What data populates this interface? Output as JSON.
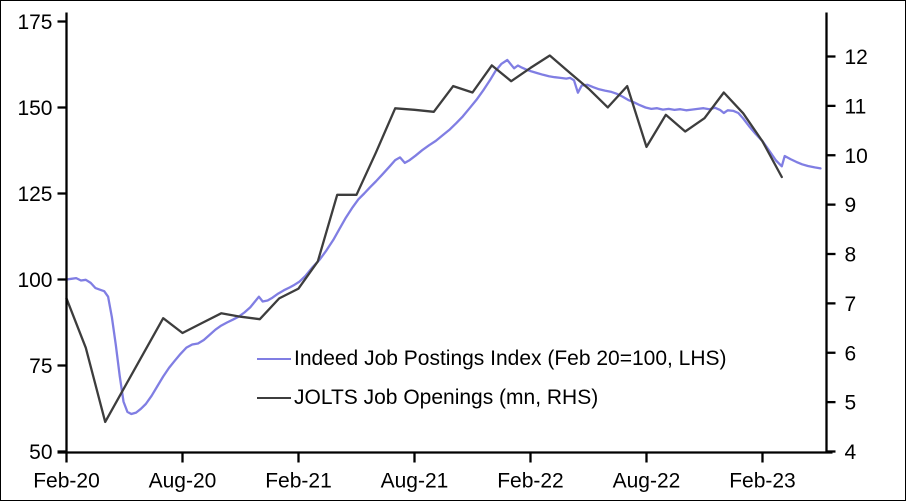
{
  "chart_data": {
    "type": "line",
    "title": "",
    "background": "#ffffff",
    "axis_color": "#000000",
    "grid": false,
    "x_axis": {
      "unit": "months-since-Feb-2020",
      "ticks": [
        {
          "m": 0,
          "label": "Feb-20"
        },
        {
          "m": 6,
          "label": "Aug-20"
        },
        {
          "m": 12,
          "label": "Feb-21"
        },
        {
          "m": 18,
          "label": "Aug-21"
        },
        {
          "m": 24,
          "label": "Feb-22"
        },
        {
          "m": 30,
          "label": "Aug-22"
        },
        {
          "m": 36,
          "label": "Feb-23"
        }
      ]
    },
    "y_left": {
      "min": 50,
      "max": 175,
      "ticks": [
        50,
        75,
        100,
        125,
        150,
        175
      ]
    },
    "y_right": {
      "min": 4,
      "max": 12,
      "ticks": [
        4,
        5,
        6,
        7,
        8,
        9,
        10,
        11,
        12
      ]
    },
    "legend": [
      {
        "label": "Indeed Job Postings Index (Feb 20=100, LHS)",
        "color": "#807ee3"
      },
      {
        "label": "JOLTS Job Openings (mn, RHS)",
        "color": "#3d3d3d"
      }
    ],
    "series": [
      {
        "name": "Indeed Job Postings Index (Feb 20=100, LHS)",
        "axis": "left",
        "color": "#807ee3",
        "points": [
          [
            0,
            100
          ],
          [
            0.25,
            100.2
          ],
          [
            0.5,
            100.4
          ],
          [
            0.75,
            99.7
          ],
          [
            1.0,
            99.9
          ],
          [
            1.25,
            99.0
          ],
          [
            1.5,
            97.5
          ],
          [
            1.75,
            97.0
          ],
          [
            1.95,
            96.6
          ],
          [
            2.15,
            95.0
          ],
          [
            2.35,
            89.0
          ],
          [
            2.55,
            81.0
          ],
          [
            2.75,
            72.0
          ],
          [
            2.95,
            64.5
          ],
          [
            3.15,
            61.5
          ],
          [
            3.35,
            60.9
          ],
          [
            3.6,
            61.3
          ],
          [
            3.85,
            62.4
          ],
          [
            4.1,
            63.8
          ],
          [
            4.4,
            66.2
          ],
          [
            4.7,
            69.0
          ],
          [
            5.0,
            71.8
          ],
          [
            5.3,
            74.3
          ],
          [
            5.6,
            76.4
          ],
          [
            5.9,
            78.4
          ],
          [
            6.2,
            80.2
          ],
          [
            6.5,
            81.1
          ],
          [
            6.8,
            81.4
          ],
          [
            7.1,
            82.4
          ],
          [
            7.4,
            83.9
          ],
          [
            7.7,
            85.4
          ],
          [
            8.0,
            86.6
          ],
          [
            8.3,
            87.5
          ],
          [
            8.6,
            88.3
          ],
          [
            8.9,
            89.2
          ],
          [
            9.2,
            90.4
          ],
          [
            9.5,
            91.9
          ],
          [
            9.75,
            93.6
          ],
          [
            9.95,
            95.0
          ],
          [
            10.15,
            93.6
          ],
          [
            10.4,
            93.9
          ],
          [
            10.65,
            94.7
          ],
          [
            10.95,
            95.9
          ],
          [
            11.25,
            96.9
          ],
          [
            11.55,
            97.7
          ],
          [
            11.8,
            98.5
          ],
          [
            12.05,
            99.4
          ],
          [
            12.35,
            101.0
          ],
          [
            12.7,
            103.4
          ],
          [
            13.1,
            105.8
          ],
          [
            13.45,
            108.5
          ],
          [
            13.8,
            111.5
          ],
          [
            14.1,
            114.5
          ],
          [
            14.45,
            118.0
          ],
          [
            14.8,
            121.0
          ],
          [
            15.1,
            123.3
          ],
          [
            15.4,
            125.0
          ],
          [
            15.7,
            126.8
          ],
          [
            16.0,
            128.5
          ],
          [
            16.35,
            130.6
          ],
          [
            16.7,
            132.8
          ],
          [
            17.0,
            134.7
          ],
          [
            17.25,
            135.5
          ],
          [
            17.5,
            133.9
          ],
          [
            17.75,
            134.7
          ],
          [
            18.05,
            136.0
          ],
          [
            18.4,
            137.6
          ],
          [
            18.75,
            139.0
          ],
          [
            19.1,
            140.3
          ],
          [
            19.45,
            141.9
          ],
          [
            19.8,
            143.5
          ],
          [
            20.15,
            145.4
          ],
          [
            20.5,
            147.4
          ],
          [
            20.85,
            149.8
          ],
          [
            21.2,
            152.2
          ],
          [
            21.55,
            154.9
          ],
          [
            21.9,
            157.9
          ],
          [
            22.2,
            160.7
          ],
          [
            22.5,
            162.7
          ],
          [
            22.8,
            163.8
          ],
          [
            23.0,
            162.4
          ],
          [
            23.15,
            161.4
          ],
          [
            23.35,
            162.2
          ],
          [
            23.55,
            161.6
          ],
          [
            23.8,
            161.0
          ],
          [
            24.05,
            160.5
          ],
          [
            24.35,
            160.0
          ],
          [
            24.65,
            159.5
          ],
          [
            24.95,
            159.1
          ],
          [
            25.25,
            158.8
          ],
          [
            25.55,
            158.6
          ],
          [
            25.85,
            158.4
          ],
          [
            26.05,
            158.6
          ],
          [
            26.25,
            157.9
          ],
          [
            26.45,
            154.3
          ],
          [
            26.65,
            156.4
          ],
          [
            26.95,
            156.6
          ],
          [
            27.25,
            155.9
          ],
          [
            27.55,
            155.3
          ],
          [
            27.85,
            154.9
          ],
          [
            28.15,
            154.6
          ],
          [
            28.45,
            154.0
          ],
          [
            28.75,
            153.2
          ],
          [
            29.05,
            152.2
          ],
          [
            29.35,
            151.5
          ],
          [
            29.65,
            150.7
          ],
          [
            29.95,
            150.0
          ],
          [
            30.25,
            149.6
          ],
          [
            30.55,
            149.8
          ],
          [
            30.85,
            149.4
          ],
          [
            31.15,
            149.6
          ],
          [
            31.45,
            149.3
          ],
          [
            31.75,
            149.5
          ],
          [
            32.05,
            149.2
          ],
          [
            32.35,
            149.4
          ],
          [
            32.65,
            149.6
          ],
          [
            32.95,
            149.8
          ],
          [
            33.25,
            149.5
          ],
          [
            33.55,
            149.9
          ],
          [
            33.8,
            149.3
          ],
          [
            34.0,
            148.4
          ],
          [
            34.2,
            149.2
          ],
          [
            34.5,
            149.0
          ],
          [
            34.75,
            148.4
          ],
          [
            35.0,
            146.8
          ],
          [
            35.3,
            144.6
          ],
          [
            35.65,
            142.3
          ],
          [
            36.0,
            140.2
          ],
          [
            36.35,
            137.4
          ],
          [
            36.7,
            134.6
          ],
          [
            37.0,
            132.9
          ],
          [
            37.15,
            135.9
          ],
          [
            37.45,
            135.0
          ],
          [
            37.75,
            134.2
          ],
          [
            38.05,
            133.5
          ],
          [
            38.35,
            133.0
          ],
          [
            38.7,
            132.6
          ],
          [
            39.0,
            132.3
          ]
        ]
      },
      {
        "name": "JOLTS Job Openings (mn, RHS)",
        "axis": "right",
        "color": "#3d3d3d",
        "points": [
          [
            0,
            7.1
          ],
          [
            1,
            6.1
          ],
          [
            2,
            4.6
          ],
          [
            3,
            5.3
          ],
          [
            4,
            6.0
          ],
          [
            5,
            6.7
          ],
          [
            6,
            6.4
          ],
          [
            7,
            6.6
          ],
          [
            8,
            6.8
          ],
          [
            9,
            6.73
          ],
          [
            10,
            6.68
          ],
          [
            11,
            7.1
          ],
          [
            12,
            7.3
          ],
          [
            13,
            7.85
          ],
          [
            14,
            9.2
          ],
          [
            15,
            9.2
          ],
          [
            16,
            10.05
          ],
          [
            17,
            10.95
          ],
          [
            18,
            10.92
          ],
          [
            19,
            10.88
          ],
          [
            20,
            11.4
          ],
          [
            21,
            11.27
          ],
          [
            22,
            11.82
          ],
          [
            23,
            11.5
          ],
          [
            24,
            11.77
          ],
          [
            25,
            12.02
          ],
          [
            26,
            11.68
          ],
          [
            27,
            11.35
          ],
          [
            28,
            10.97
          ],
          [
            29,
            11.4
          ],
          [
            30,
            10.17
          ],
          [
            31,
            10.82
          ],
          [
            32,
            10.48
          ],
          [
            33,
            10.75
          ],
          [
            34,
            11.27
          ],
          [
            35,
            10.85
          ],
          [
            36,
            10.28
          ],
          [
            37,
            9.56
          ]
        ]
      }
    ]
  }
}
